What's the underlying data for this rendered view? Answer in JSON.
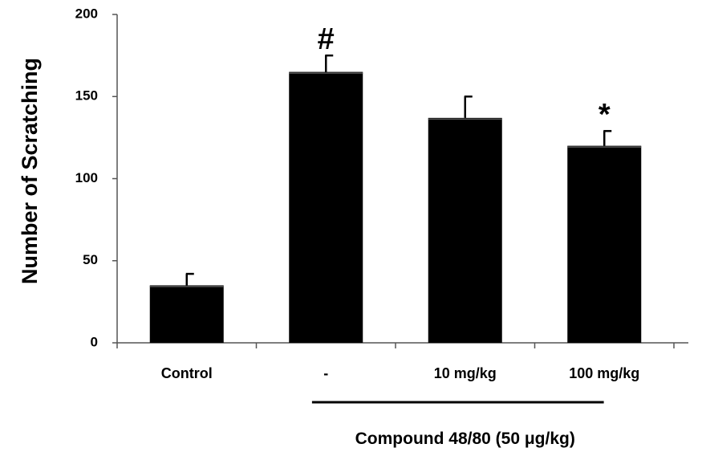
{
  "chart_data": {
    "type": "bar",
    "ylabel": "Number of Scratching",
    "xlabel": "",
    "ylim": [
      0,
      200
    ],
    "yticks": [
      0,
      50,
      100,
      150,
      200
    ],
    "grid": false,
    "categories": [
      "Control",
      "-",
      "10 mg/kg",
      "100 mg/kg"
    ],
    "values": [
      35,
      165,
      137,
      120
    ],
    "errors": [
      7,
      10,
      13,
      9
    ],
    "significance": [
      "",
      "#",
      "",
      "*"
    ],
    "group_bracket": {
      "label": "Compound 48/80 (50 μg/kg)",
      "from_category": 1,
      "to_category": 3
    },
    "colors": {
      "bar": "#000000",
      "axis": "#555555"
    }
  }
}
